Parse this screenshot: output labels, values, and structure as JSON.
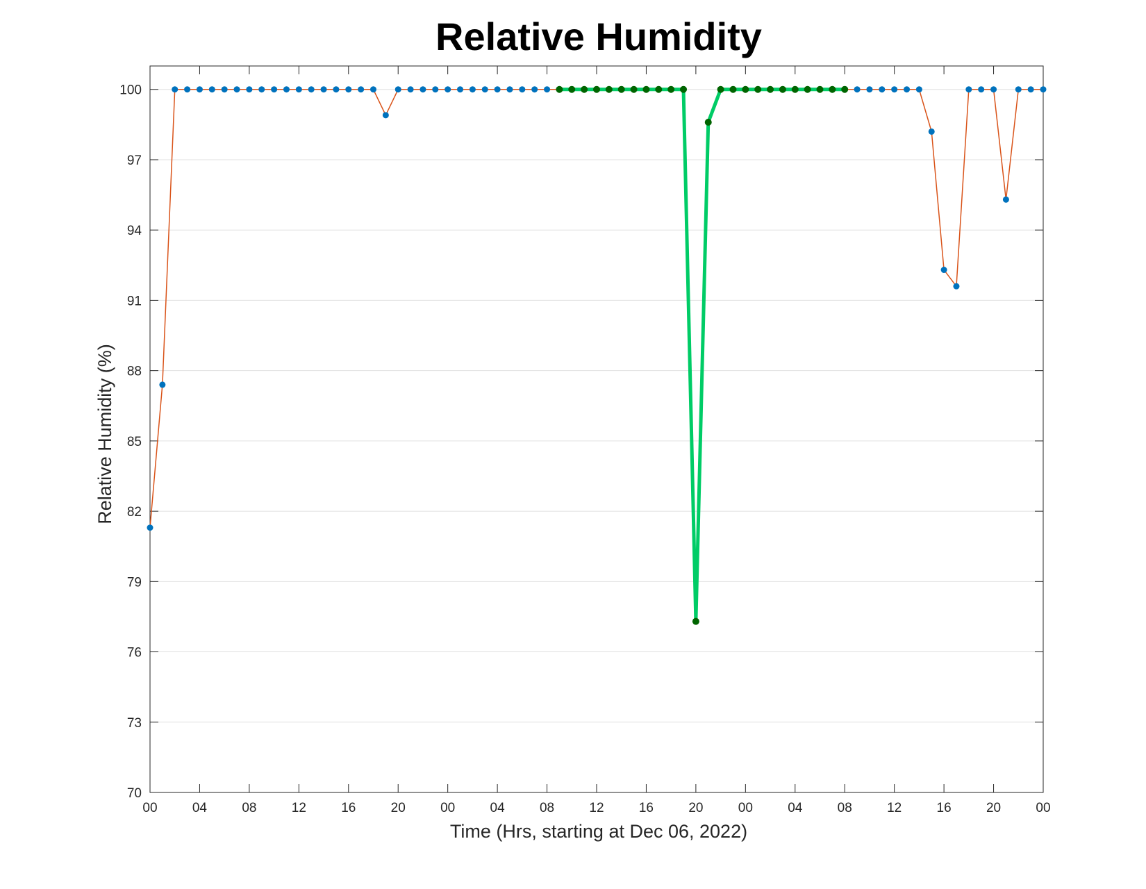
{
  "chart_data": {
    "type": "line",
    "title": "Relative Humidity",
    "xlabel": "Time (Hrs, starting at Dec 06, 2022)",
    "ylabel": "Relative Humidity (%)",
    "ylim": [
      70,
      101
    ],
    "xlim": [
      0,
      72
    ],
    "yticks": [
      70,
      73,
      76,
      79,
      82,
      85,
      88,
      91,
      94,
      97,
      100
    ],
    "yticklabels": [
      "70",
      "73",
      "76",
      "79",
      "82",
      "85",
      "88",
      "91",
      "94",
      "97",
      "100"
    ],
    "xticks": [
      0,
      4,
      8,
      12,
      16,
      20,
      24,
      28,
      32,
      36,
      40,
      44,
      48,
      52,
      56,
      60,
      64,
      68,
      72
    ],
    "xticklabels": [
      "00",
      "04",
      "08",
      "12",
      "16",
      "20",
      "00",
      "04",
      "08",
      "12",
      "16",
      "20",
      "00",
      "04",
      "08",
      "12",
      "16",
      "20",
      "00"
    ],
    "grid": "horizontal",
    "colors": {
      "main_line": "#d95319",
      "main_marker": "#0072bd",
      "highlight_line": "#00cc66",
      "highlight_marker": "#006400",
      "grid": "#e0e0e0",
      "axis": "#262626"
    },
    "series": [
      {
        "x": [
          0,
          1,
          2,
          3,
          4,
          5,
          6,
          7,
          8,
          9,
          10,
          11,
          12,
          13,
          14,
          15,
          16,
          17,
          18,
          19,
          20,
          21,
          22,
          23,
          24,
          25,
          26,
          27,
          28,
          29,
          30,
          31,
          32,
          33,
          34,
          35,
          36,
          37,
          38,
          39,
          40,
          41,
          42,
          43,
          44,
          45,
          46,
          47,
          48,
          49,
          50,
          51,
          52,
          53,
          54,
          55,
          56,
          57,
          58,
          59,
          60,
          61,
          62,
          63,
          64,
          65,
          66,
          67,
          68,
          69,
          70,
          71,
          72
        ],
        "values": [
          81.3,
          87.4,
          100,
          100,
          100,
          100,
          100,
          100,
          100,
          100,
          100,
          100,
          100,
          100,
          100,
          100,
          100,
          100,
          100,
          98.9,
          100,
          100,
          100,
          100,
          100,
          100,
          100,
          100,
          100,
          100,
          100,
          100,
          100,
          100,
          100,
          100,
          100,
          100,
          100,
          100,
          100,
          100,
          100,
          100,
          77.3,
          98.6,
          100,
          100,
          100,
          100,
          100,
          100,
          100,
          100,
          100,
          100,
          100,
          100,
          100,
          100,
          100,
          100,
          100,
          98.2,
          92.3,
          91.6,
          100,
          100,
          100,
          95.3,
          100,
          100,
          100
        ]
      },
      {
        "x": [
          33,
          34,
          35,
          36,
          37,
          38,
          39,
          40,
          41,
          42,
          43,
          44,
          45,
          46,
          47,
          48,
          49,
          50,
          51,
          52,
          53,
          54,
          55,
          56
        ],
        "values": [
          100,
          100,
          100,
          100,
          100,
          100,
          100,
          100,
          100,
          100,
          100,
          77.3,
          98.6,
          100,
          100,
          100,
          100,
          100,
          100,
          100,
          100,
          100,
          100,
          100
        ]
      }
    ]
  }
}
